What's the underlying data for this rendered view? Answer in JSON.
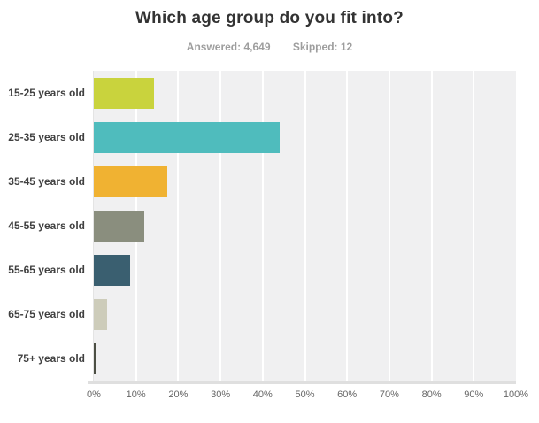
{
  "header": {
    "title": "Which age group do you fit into?",
    "answered_label": "Answered: 4,649",
    "skipped_label": "Skipped: 12"
  },
  "chart_data": {
    "type": "bar",
    "orientation": "horizontal",
    "title": "Which age group do you fit into?",
    "categories": [
      "15-25 years old",
      "25-35 years old",
      "35-45 years old",
      "45-55 years old",
      "55-65 years old",
      "65-75 years old",
      "75+ years old"
    ],
    "values": [
      14.2,
      44.0,
      17.3,
      12.0,
      8.7,
      3.1,
      0.4
    ],
    "unit": "%",
    "xlabel": "",
    "ylabel": "",
    "xlim": [
      0,
      100
    ],
    "x_ticks": [
      "0%",
      "10%",
      "20%",
      "30%",
      "40%",
      "50%",
      "60%",
      "70%",
      "80%",
      "90%",
      "100%"
    ],
    "grid": true,
    "legend": "none",
    "bar_colors": [
      "#c9d33d",
      "#4fbcbd",
      "#f0b232",
      "#8a8e7e",
      "#3a5f70",
      "#cdccba",
      "#4c4f44"
    ],
    "plot_bg_color": "#f0f0f1",
    "gridline_color": "#ffffff",
    "axis_band_color": "#dfdfdf"
  }
}
